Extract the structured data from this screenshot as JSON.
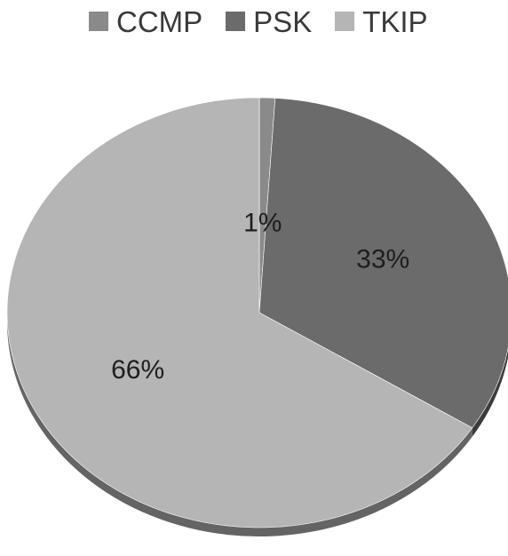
{
  "chart_data": {
    "type": "pie",
    "title": "",
    "categories": [
      "CCMP",
      "PSK",
      "TKIP"
    ],
    "values": [
      1,
      33,
      66
    ],
    "data_labels": [
      "1%",
      "33%",
      "66%"
    ],
    "colors": [
      "#8a8a8a",
      "#6b6b6b",
      "#b5b5b5"
    ],
    "legend_position": "top",
    "style": "3d-tilted"
  },
  "legend": {
    "items": [
      {
        "label": "CCMP",
        "color": "#8a8a8a"
      },
      {
        "label": "PSK",
        "color": "#6b6b6b"
      },
      {
        "label": "TKIP",
        "color": "#b5b5b5"
      }
    ]
  }
}
